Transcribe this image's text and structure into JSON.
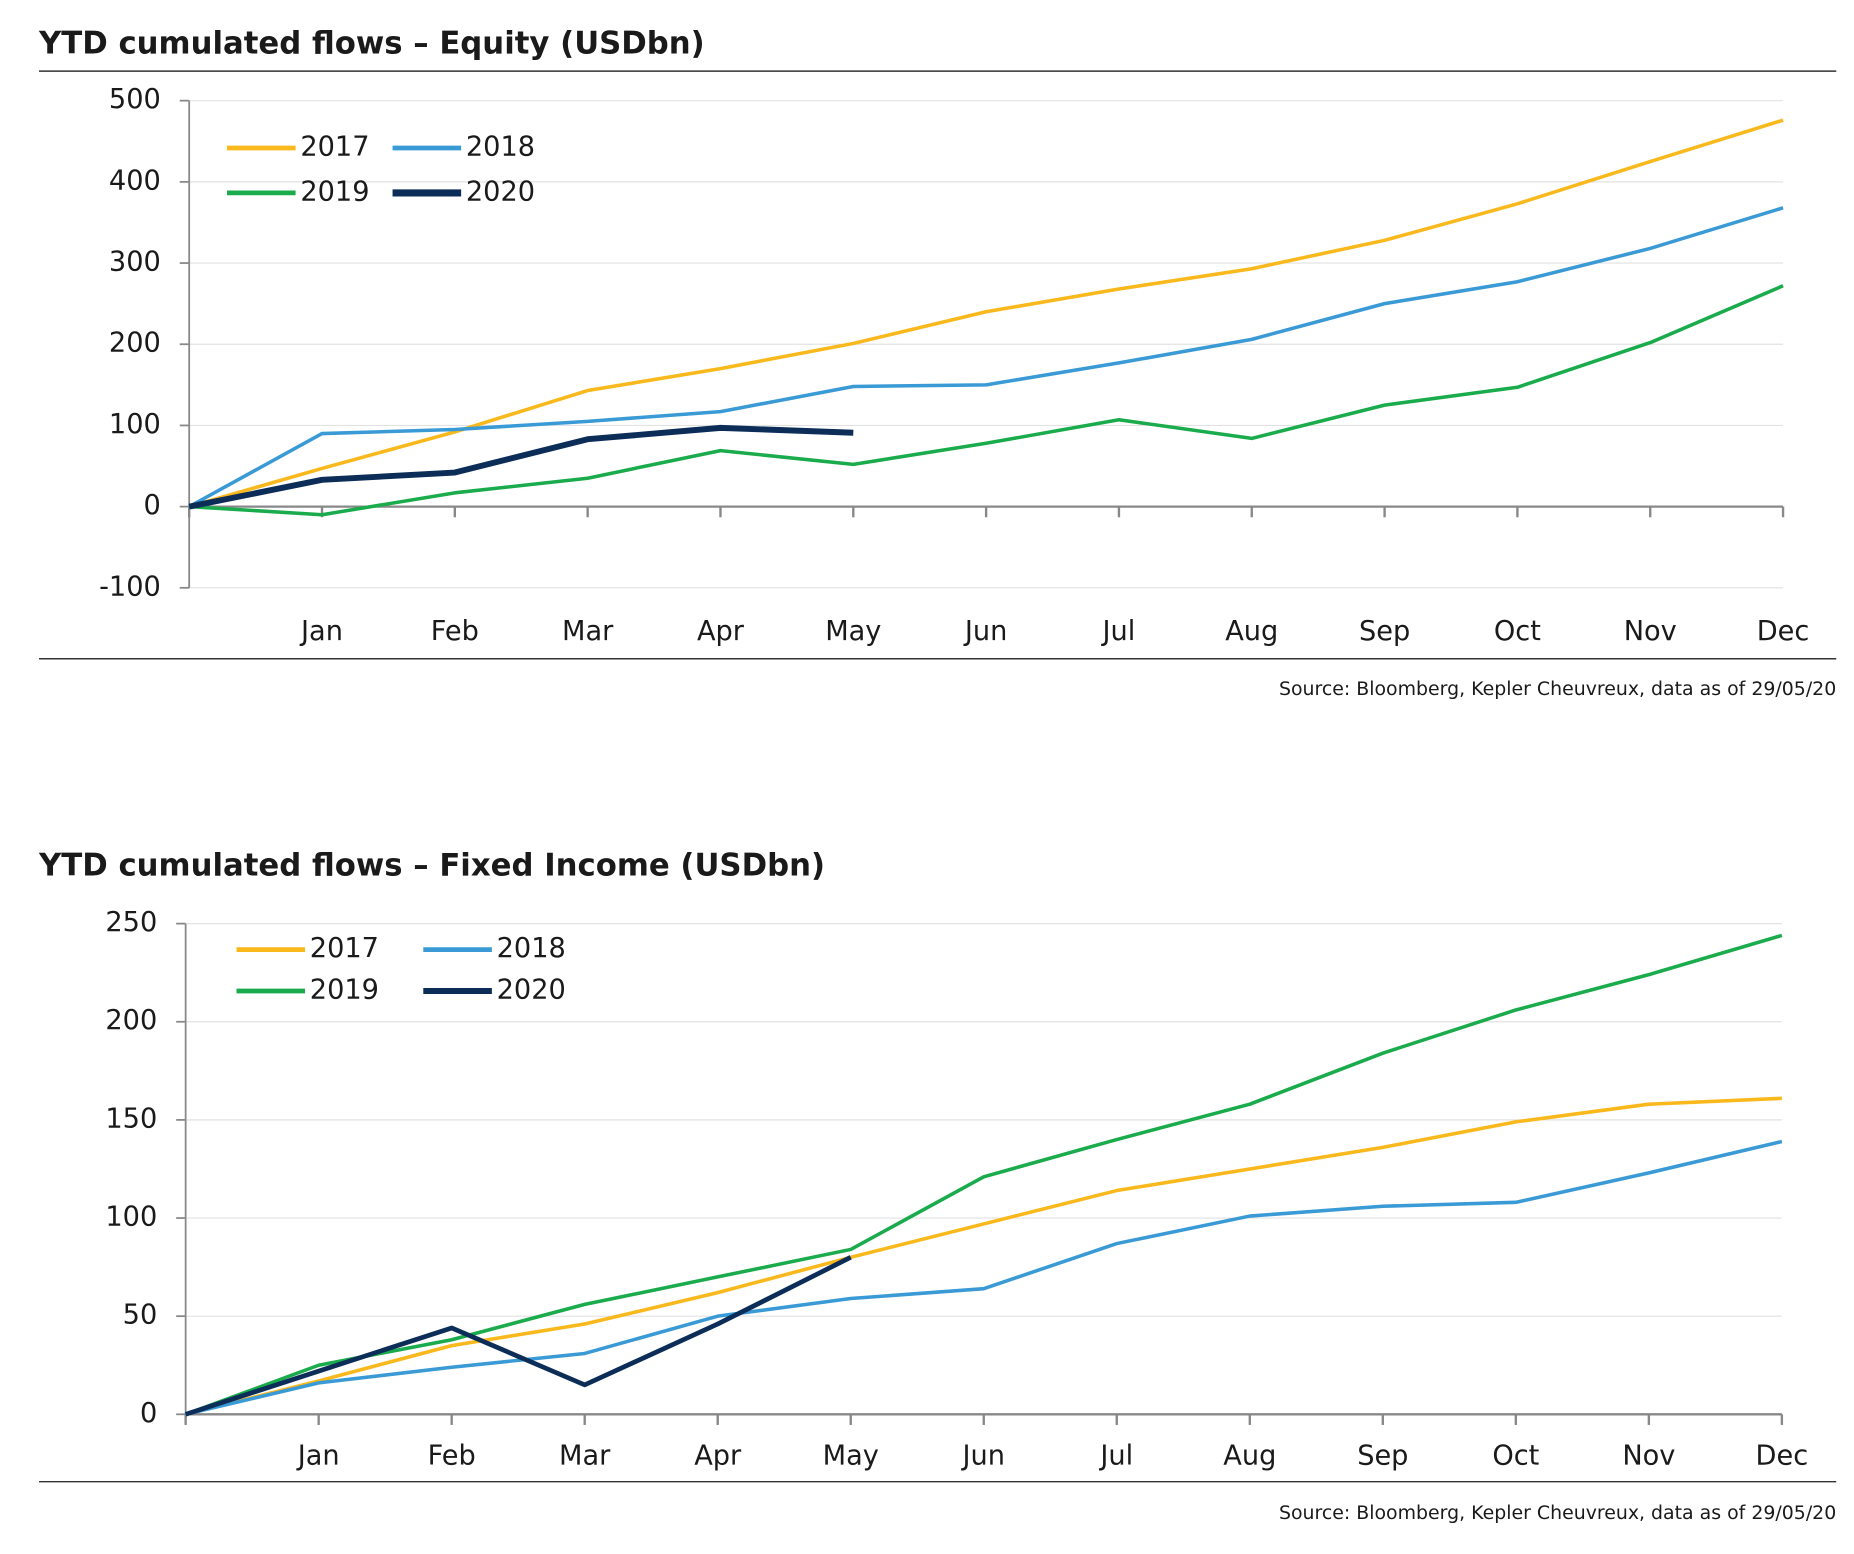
{
  "chart_data": [
    {
      "type": "line",
      "title": "YTD cumulated flows – Equity (USDbn)",
      "categories": [
        null,
        "Jan",
        "Feb",
        "Mar",
        "Apr",
        "May",
        "Jun",
        "Jul",
        "Aug",
        "Sep",
        "Oct",
        "Nov",
        "Dec"
      ],
      "series": [
        {
          "name": "2017",
          "color": "#f9b81b",
          "linewidth": 3,
          "values": [
            0,
            47,
            92,
            143,
            170,
            201,
            240,
            268,
            293,
            328,
            373,
            425,
            476
          ]
        },
        {
          "name": "2018",
          "color": "#3a9ad6",
          "linewidth": 3,
          "values": [
            0,
            90,
            95,
            105,
            117,
            148,
            150,
            177,
            206,
            250,
            277,
            318,
            368
          ]
        },
        {
          "name": "2019",
          "color": "#1aab4c",
          "linewidth": 3,
          "values": [
            0,
            -10,
            17,
            35,
            69,
            52,
            78,
            107,
            84,
            125,
            147,
            202,
            272
          ]
        },
        {
          "name": "2020",
          "color": "#0c2d57",
          "linewidth": 5,
          "values": [
            0,
            33,
            42,
            83,
            97,
            91,
            null,
            null,
            null,
            null,
            null,
            null,
            null
          ]
        }
      ],
      "ylim": [
        -100,
        500
      ],
      "yticks": [
        -100,
        0,
        100,
        200,
        300,
        400,
        500
      ],
      "grid": true,
      "legend": "upper left",
      "source": "Source: Bloomberg, Kepler Cheuvreux, data as of 29/05/20"
    },
    {
      "type": "line",
      "title": "YTD cumulated flows – Fixed Income (USDbn)",
      "categories": [
        null,
        "Jan",
        "Feb",
        "Mar",
        "Apr",
        "May",
        "Jun",
        "Jul",
        "Aug",
        "Sep",
        "Oct",
        "Nov",
        "Dec"
      ],
      "series": [
        {
          "name": "2017",
          "color": "#f9b81b",
          "linewidth": 3,
          "values": [
            0,
            17,
            35,
            46,
            62,
            80,
            97,
            114,
            125,
            136,
            149,
            158,
            161
          ]
        },
        {
          "name": "2018",
          "color": "#3a9ad6",
          "linewidth": 3,
          "values": [
            0,
            16,
            24,
            31,
            50,
            59,
            64,
            87,
            101,
            106,
            108,
            123,
            139
          ]
        },
        {
          "name": "2019",
          "color": "#1aab4c",
          "linewidth": 3,
          "values": [
            0,
            25,
            38,
            56,
            70,
            84,
            121,
            140,
            158,
            184,
            206,
            224,
            244
          ]
        },
        {
          "name": "2020",
          "color": "#0c2d57",
          "linewidth": 4,
          "values": [
            0,
            22,
            44,
            15,
            46,
            80,
            null,
            null,
            null,
            null,
            null,
            null,
            null
          ]
        }
      ],
      "ylim": [
        0,
        250
      ],
      "yticks": [
        0,
        50,
        100,
        150,
        200,
        250
      ],
      "grid": true,
      "legend": "upper left",
      "source": "Source: Bloomberg, Kepler Cheuvreux, data as of 29/05/20"
    }
  ]
}
